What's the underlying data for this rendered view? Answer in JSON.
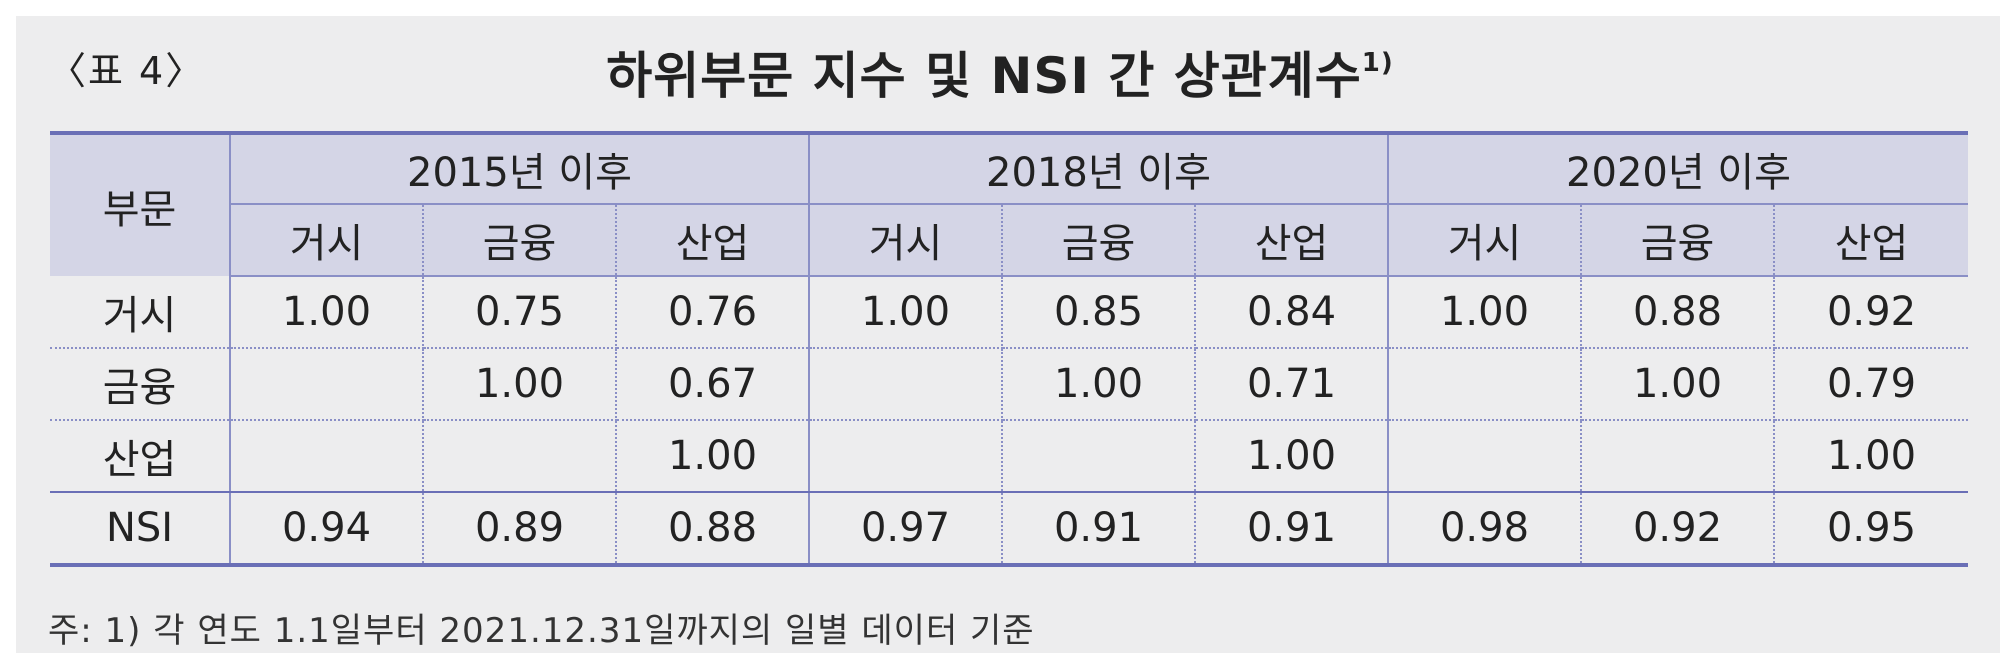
{
  "table_label": "〈표 4〉",
  "title": "하위부문 지수 및 NSI 간 상관계수",
  "title_sup": "1)",
  "header": {
    "sector": "부문",
    "periods": [
      "2015년 이후",
      "2018년 이후",
      "2020년 이후"
    ],
    "subcols": [
      "거시",
      "금융",
      "산업",
      "거시",
      "금융",
      "산업",
      "거시",
      "금융",
      "산업"
    ]
  },
  "rows": [
    {
      "label": "거시",
      "values": [
        "1.00",
        "0.75",
        "0.76",
        "1.00",
        "0.85",
        "0.84",
        "1.00",
        "0.88",
        "0.92"
      ]
    },
    {
      "label": "금융",
      "values": [
        "",
        "1.00",
        "0.67",
        "",
        "1.00",
        "0.71",
        "",
        "1.00",
        "0.79"
      ]
    },
    {
      "label": "산업",
      "values": [
        "",
        "",
        "1.00",
        "",
        "",
        "1.00",
        "",
        "",
        "1.00"
      ]
    },
    {
      "label": "NSI",
      "values": [
        "0.94",
        "0.89",
        "0.88",
        "0.97",
        "0.91",
        "0.91",
        "0.98",
        "0.92",
        "0.95"
      ]
    }
  ],
  "note": "주: 1) 각 연도 1.1일부터 2021.12.31일까지의 일별 데이터 기준"
}
